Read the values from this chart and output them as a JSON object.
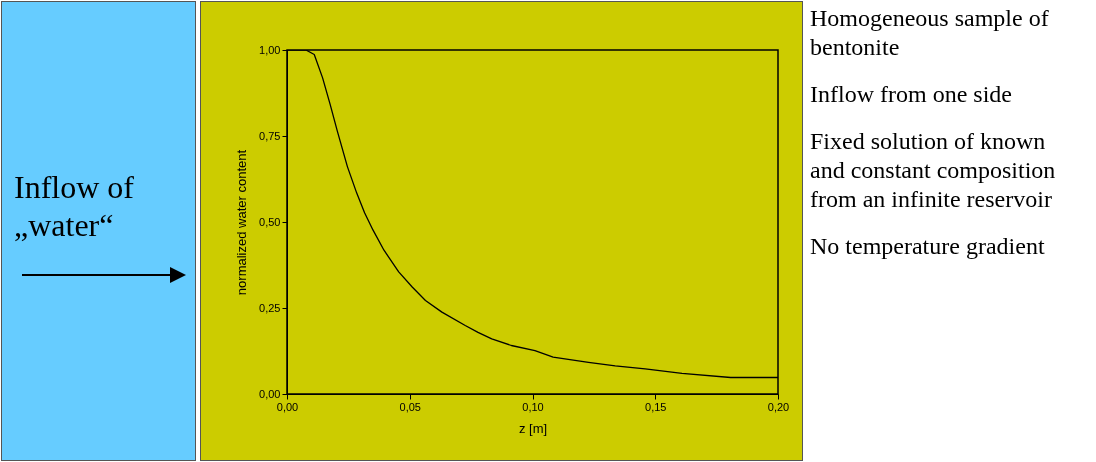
{
  "chart_data": {
    "type": "line",
    "xlabel": "z [m]",
    "ylabel": "normalized water content",
    "x": [
      0,
      0.0077,
      0.0111,
      0.0145,
      0.0176,
      0.0205,
      0.0246,
      0.0284,
      0.0316,
      0.035,
      0.0395,
      0.0455,
      0.051,
      0.0564,
      0.0631,
      0.0726,
      0.0778,
      0.0834,
      0.0914,
      0.101,
      0.1084,
      0.1228,
      0.1337,
      0.1459,
      0.1609,
      0.1807,
      0.2
    ],
    "series": [
      {
        "color": "#000000",
        "values": [
          1.0,
          1.0,
          0.987,
          0.919,
          0.841,
          0.764,
          0.661,
          0.584,
          0.527,
          0.477,
          0.418,
          0.355,
          0.311,
          0.272,
          0.238,
          0.199,
          0.179,
          0.16,
          0.141,
          0.126,
          0.107,
          0.092,
          0.082,
          0.073,
          0.06,
          0.048,
          0.048
        ]
      }
    ],
    "xlim": [
      0,
      0.2
    ],
    "ylim": [
      0,
      1
    ],
    "xticks": [
      {
        "value": 0,
        "label": "0,00"
      },
      {
        "value": 0.05,
        "label": "0,05"
      },
      {
        "value": 0.1,
        "label": "0,10"
      },
      {
        "value": 0.15,
        "label": "0,15"
      },
      {
        "value": 0.2,
        "label": "0,20"
      }
    ],
    "yticks": [
      {
        "value": 0,
        "label": "0,00"
      },
      {
        "value": 0.25,
        "label": "0,25"
      },
      {
        "value": 0.5,
        "label": "0,50"
      },
      {
        "value": 0.75,
        "label": "0,75"
      },
      {
        "value": 1,
        "label": "1,00"
      }
    ],
    "grid": false,
    "marker": "none",
    "line_style": "solid",
    "annotations": [
      "Inflow of „water“",
      "Homogeneous sample of bentonite",
      "Inflow from one side",
      "Fixed solution of known and constant composition from an infinite reservoir",
      "No temperature gradient"
    ]
  }
}
